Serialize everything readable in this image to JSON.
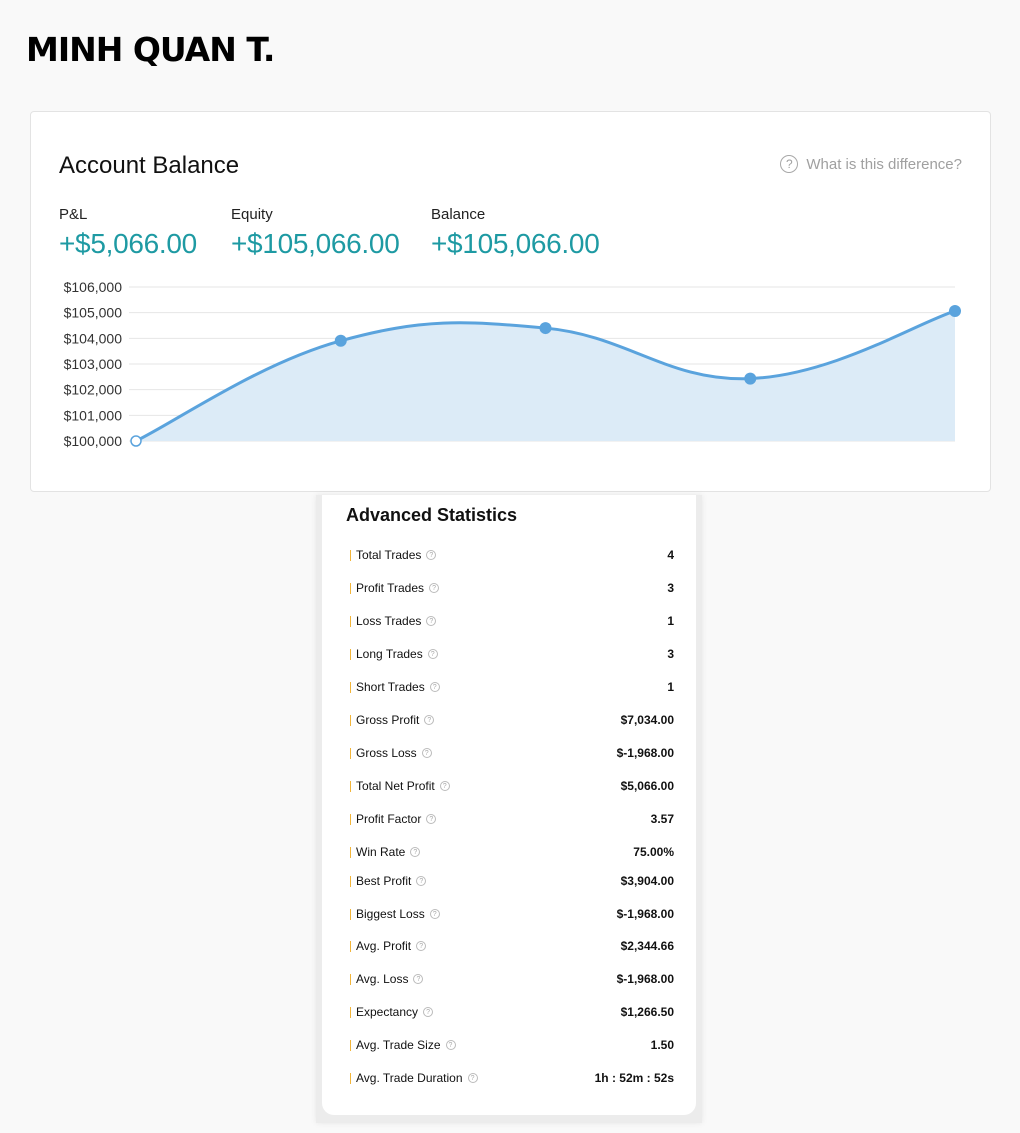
{
  "user": {
    "name": "MINH QUAN T."
  },
  "account": {
    "title": "Account Balance",
    "help_text": "What is this difference?",
    "help_icon": "question-circle-icon",
    "metrics": [
      {
        "label": "P&L",
        "value": "+$5,066.00"
      },
      {
        "label": "Equity",
        "value": "+$105,066.00"
      },
      {
        "label": "Balance",
        "value": "+$105,066.00"
      }
    ]
  },
  "chart_data": {
    "type": "area",
    "title": "",
    "xlabel": "",
    "ylabel": "",
    "ylim": [
      100000,
      106000
    ],
    "y_ticks": [
      "$100,000",
      "$101,000",
      "$102,000",
      "$103,000",
      "$104,000",
      "$105,000",
      "$106,000"
    ],
    "y_tick_values": [
      100000,
      101000,
      102000,
      103000,
      104000,
      105000,
      106000
    ],
    "x": [
      0,
      1,
      2,
      3,
      4
    ],
    "series": [
      {
        "values": [
          100000,
          103904,
          104400,
          102432,
          105066
        ]
      }
    ],
    "grid": true,
    "colors": {
      "line": "#5aa3dd",
      "fill": "#dcebf7",
      "grid": "#e6e6e6"
    }
  },
  "stats": {
    "title": "Advanced Statistics",
    "accent_color": "#f2b53a",
    "rows": [
      {
        "label": "Total Trades",
        "value": "4"
      },
      {
        "label": "Profit Trades",
        "value": "3"
      },
      {
        "label": "Loss Trades",
        "value": "1"
      },
      {
        "label": "Long Trades",
        "value": "3"
      },
      {
        "label": "Short Trades",
        "value": "1"
      },
      {
        "label": "Gross Profit",
        "value": "$7,034.00"
      },
      {
        "label": "Gross Loss",
        "value": "$-1,968.00"
      },
      {
        "label": "Total Net Profit",
        "value": "$5,066.00"
      },
      {
        "label": "Profit Factor",
        "value": "3.57"
      },
      {
        "label": "Win Rate",
        "value": "75.00%"
      },
      {
        "label": "Best Profit",
        "value": "$3,904.00"
      },
      {
        "label": "Biggest Loss",
        "value": "$-1,968.00"
      },
      {
        "label": "Avg. Profit",
        "value": "$2,344.66"
      },
      {
        "label": "Avg. Loss",
        "value": "$-1,968.00"
      },
      {
        "label": "Expectancy",
        "value": "$1,266.50"
      },
      {
        "label": "Avg. Trade Size",
        "value": "1.50"
      },
      {
        "label": "Avg. Trade Duration",
        "value": "1h : 52m : 52s"
      }
    ]
  }
}
